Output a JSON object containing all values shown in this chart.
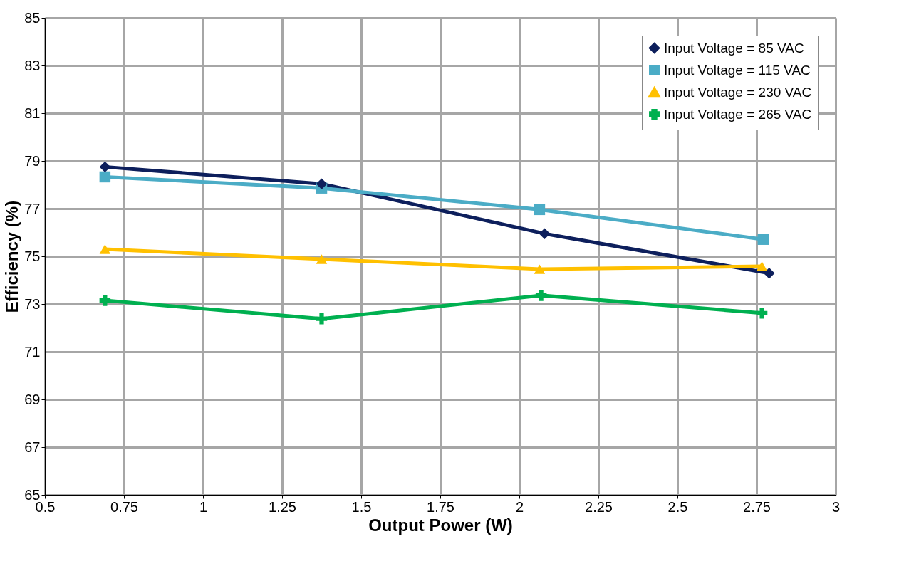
{
  "chart_data": {
    "type": "line",
    "xlabel": "Output Power (W)",
    "ylabel": "Efficiency (%)",
    "xlim": [
      0.5,
      3
    ],
    "xticks": [
      0.5,
      0.75,
      1,
      1.25,
      1.5,
      1.75,
      2,
      2.25,
      2.5,
      2.75,
      3
    ],
    "ylim": [
      65,
      85
    ],
    "yticks": [
      65,
      67,
      69,
      71,
      73,
      75,
      77,
      79,
      81,
      83,
      85
    ],
    "grid": true,
    "legend": "top right",
    "series": [
      {
        "name": "Input Voltage = 85 VAC",
        "color": "#0d1f5c",
        "marker": "diamond",
        "x": [
          0.69,
          1.375,
          2.08,
          2.79
        ],
        "values": [
          78.75,
          78.04,
          75.95,
          74.29
        ]
      },
      {
        "name": "Input Voltage = 115 VAC",
        "color": "#4bacc6",
        "marker": "square",
        "x": [
          0.69,
          1.375,
          2.064,
          2.771
        ],
        "values": [
          78.33,
          77.86,
          76.96,
          75.71
        ]
      },
      {
        "name": "Input Voltage = 230 VAC",
        "color": "#ffc000",
        "marker": "triangle",
        "x": [
          0.69,
          1.375,
          2.064,
          2.767
        ],
        "values": [
          75.3,
          74.88,
          74.46,
          74.58
        ]
      },
      {
        "name": "Input Voltage = 265 VAC",
        "color": "#00b050",
        "marker": "cross",
        "x": [
          0.69,
          1.375,
          2.069,
          2.767
        ],
        "values": [
          73.15,
          72.38,
          73.36,
          72.62
        ]
      }
    ]
  }
}
